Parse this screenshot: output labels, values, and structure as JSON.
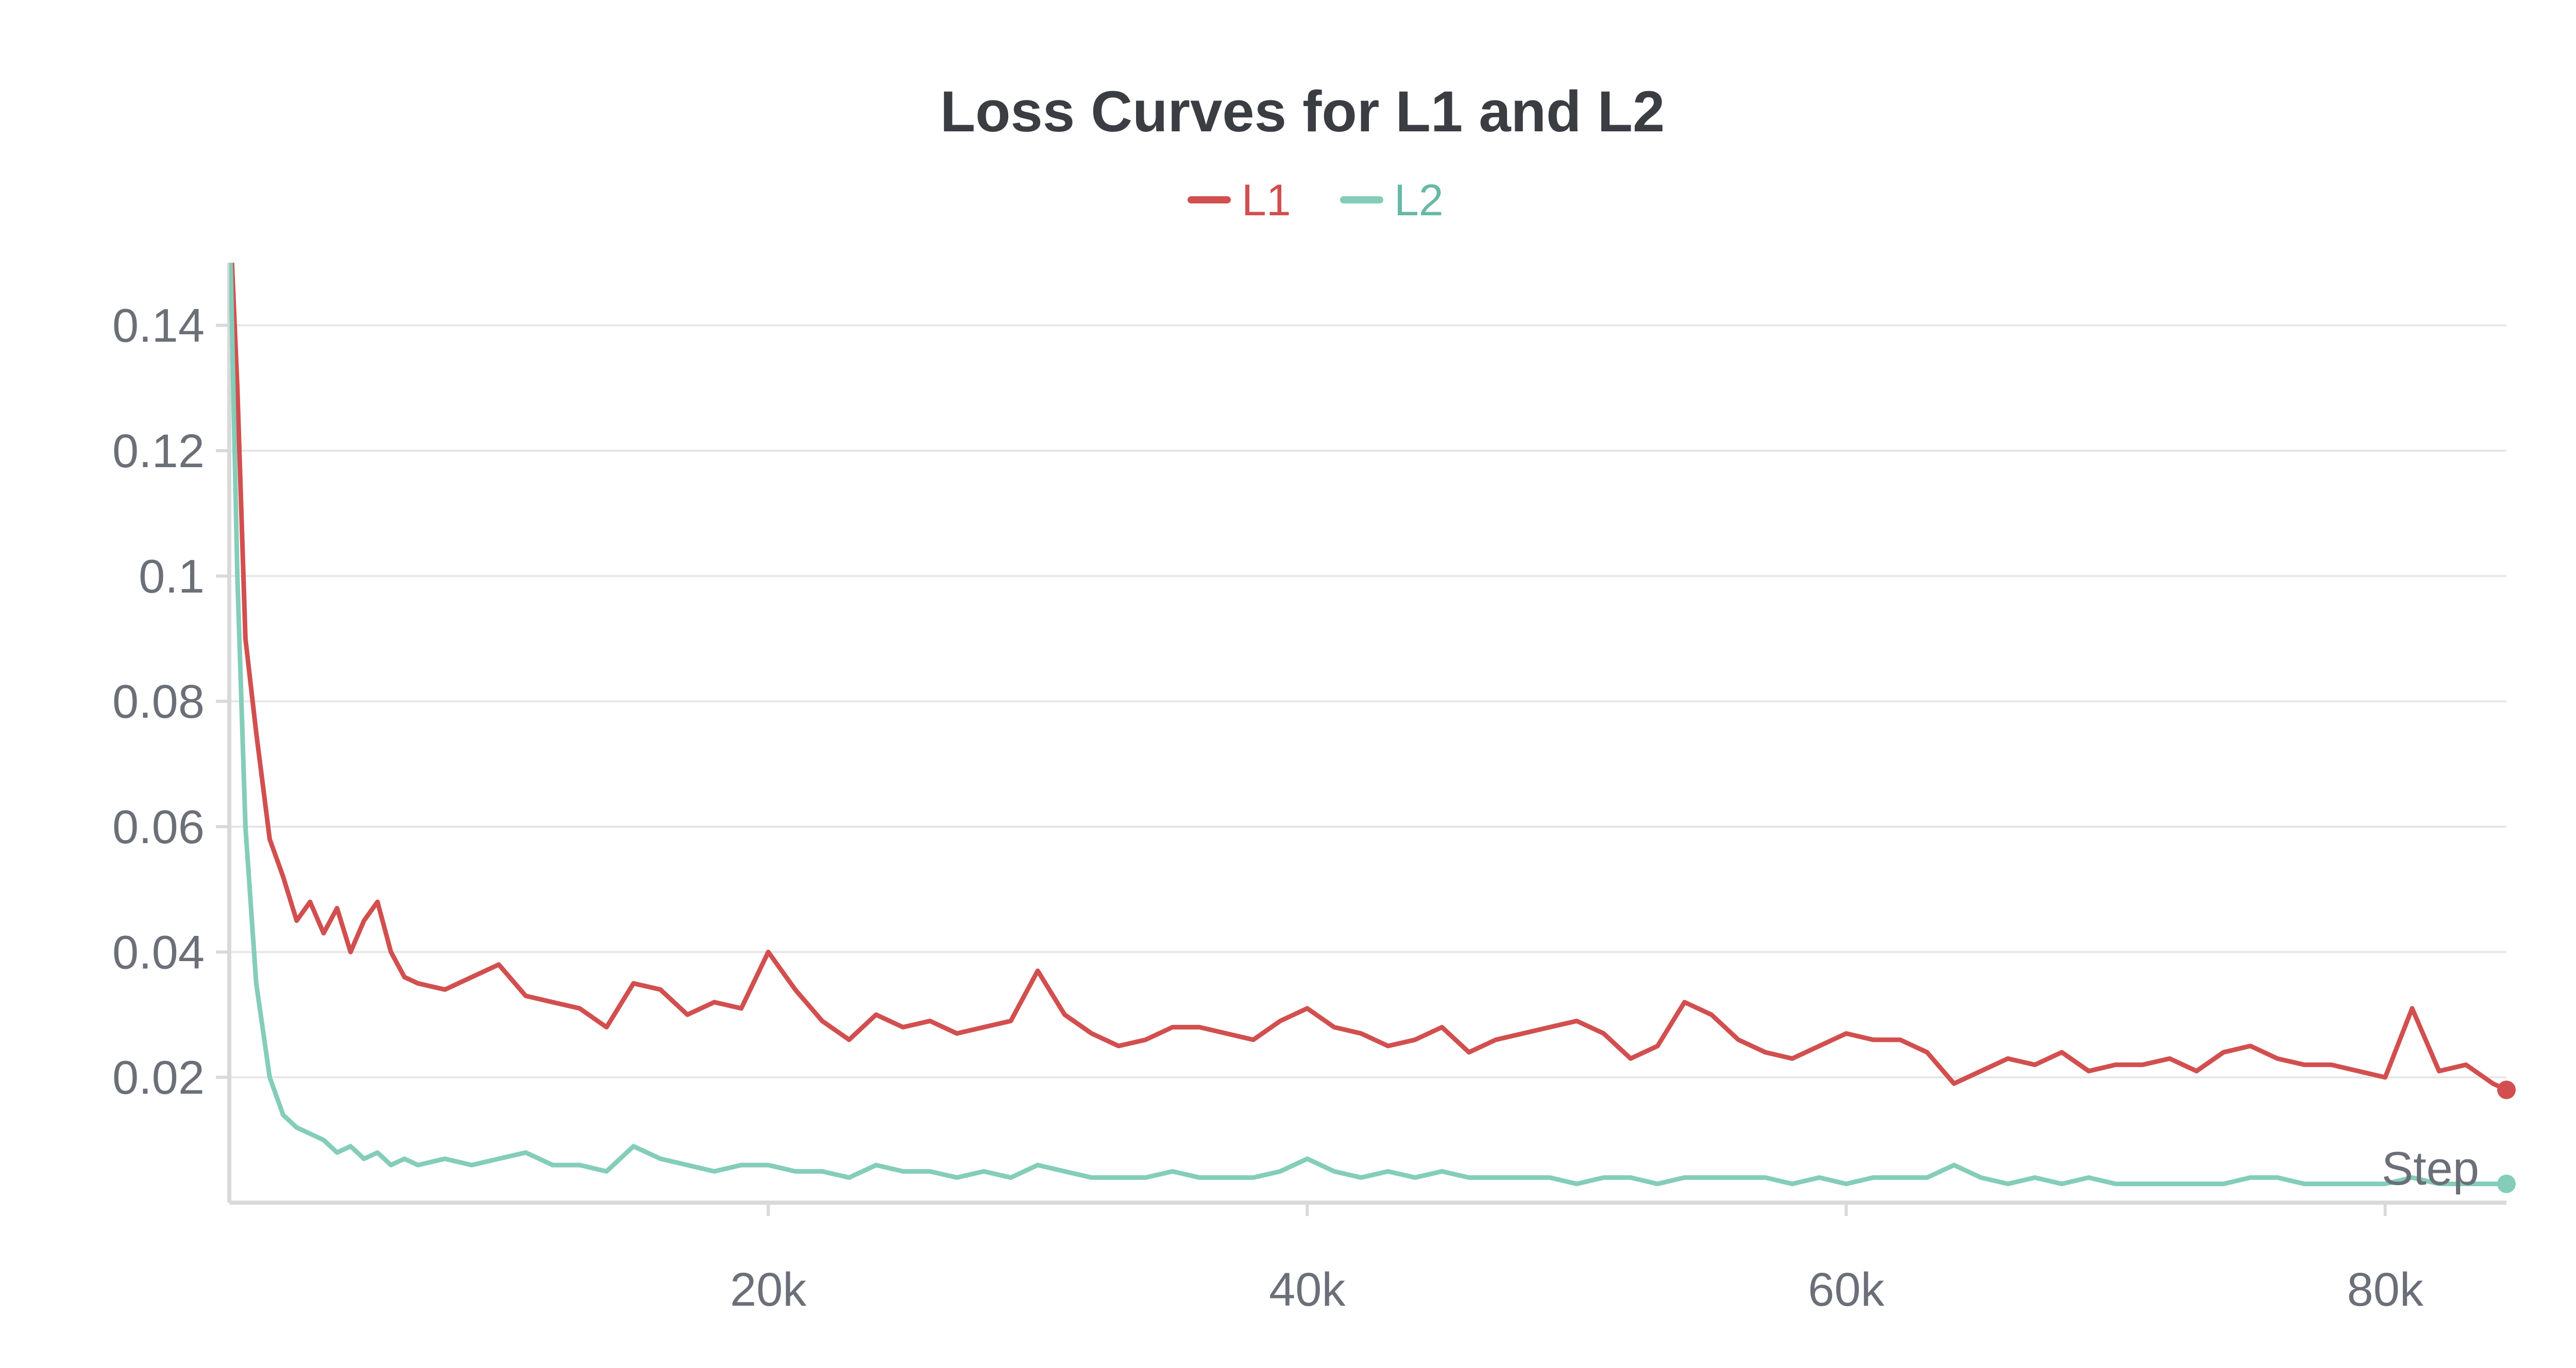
{
  "chart_data": {
    "type": "line",
    "title": "Loss Curves for L1 and L2",
    "xlabel": "Step",
    "ylabel": "",
    "xlim": [
      0,
      84500
    ],
    "ylim": [
      0.0,
      0.15
    ],
    "x_ticks": [
      20000,
      40000,
      60000,
      80000
    ],
    "x_tick_labels": [
      "20k",
      "40k",
      "60k",
      "80k"
    ],
    "y_ticks": [
      0.02,
      0.04,
      0.06,
      0.08,
      0.1,
      0.12,
      0.14
    ],
    "y_tick_labels": [
      "0.02",
      "0.04",
      "0.06",
      "0.08",
      "0.1",
      "0.12",
      "0.14"
    ],
    "grid": true,
    "legend": "top-center",
    "series": [
      {
        "name": "L1",
        "color": "#d24f4f",
        "x": [
          0,
          300,
          600,
          1000,
          1500,
          2000,
          2500,
          3000,
          3500,
          4000,
          4500,
          5000,
          5500,
          6000,
          6500,
          7000,
          8000,
          9000,
          10000,
          11000,
          12000,
          13000,
          14000,
          15000,
          16000,
          17000,
          18000,
          19000,
          20000,
          21000,
          22000,
          23000,
          24000,
          25000,
          26000,
          27000,
          28000,
          29000,
          30000,
          31000,
          32000,
          33000,
          34000,
          35000,
          36000,
          37000,
          38000,
          39000,
          40000,
          41000,
          42000,
          43000,
          44000,
          45000,
          46000,
          47000,
          48000,
          49000,
          50000,
          51000,
          52000,
          53000,
          54000,
          55000,
          56000,
          57000,
          58000,
          59000,
          60000,
          61000,
          62000,
          63000,
          64000,
          65000,
          66000,
          67000,
          68000,
          69000,
          70000,
          71000,
          72000,
          73000,
          74000,
          75000,
          76000,
          77000,
          78000,
          79000,
          80000,
          81000,
          82000,
          83000,
          84000,
          84500
        ],
        "y": [
          0.16,
          0.13,
          0.09,
          0.075,
          0.058,
          0.052,
          0.045,
          0.048,
          0.043,
          0.047,
          0.04,
          0.045,
          0.048,
          0.04,
          0.036,
          0.035,
          0.034,
          0.036,
          0.038,
          0.033,
          0.032,
          0.031,
          0.028,
          0.035,
          0.034,
          0.03,
          0.032,
          0.031,
          0.04,
          0.034,
          0.029,
          0.026,
          0.03,
          0.028,
          0.029,
          0.027,
          0.028,
          0.029,
          0.037,
          0.03,
          0.027,
          0.025,
          0.026,
          0.028,
          0.028,
          0.027,
          0.026,
          0.029,
          0.031,
          0.028,
          0.027,
          0.025,
          0.026,
          0.028,
          0.024,
          0.026,
          0.027,
          0.028,
          0.029,
          0.027,
          0.023,
          0.025,
          0.032,
          0.03,
          0.026,
          0.024,
          0.023,
          0.025,
          0.027,
          0.026,
          0.026,
          0.024,
          0.019,
          0.021,
          0.023,
          0.022,
          0.024,
          0.021,
          0.022,
          0.022,
          0.023,
          0.021,
          0.024,
          0.025,
          0.023,
          0.022,
          0.022,
          0.021,
          0.02,
          0.031,
          0.021,
          0.022,
          0.019,
          0.018
        ],
        "end_marker": true
      },
      {
        "name": "L2",
        "color": "#84cdb9",
        "x": [
          0,
          300,
          600,
          1000,
          1500,
          2000,
          2500,
          3000,
          3500,
          4000,
          4500,
          5000,
          5500,
          6000,
          6500,
          7000,
          8000,
          9000,
          10000,
          11000,
          12000,
          13000,
          14000,
          15000,
          16000,
          17000,
          18000,
          19000,
          20000,
          21000,
          22000,
          23000,
          24000,
          25000,
          26000,
          27000,
          28000,
          29000,
          30000,
          31000,
          32000,
          33000,
          34000,
          35000,
          36000,
          37000,
          38000,
          39000,
          40000,
          41000,
          42000,
          43000,
          44000,
          45000,
          46000,
          47000,
          48000,
          49000,
          50000,
          51000,
          52000,
          53000,
          54000,
          55000,
          56000,
          57000,
          58000,
          59000,
          60000,
          61000,
          62000,
          63000,
          64000,
          65000,
          66000,
          67000,
          68000,
          69000,
          70000,
          71000,
          72000,
          73000,
          74000,
          75000,
          76000,
          77000,
          78000,
          79000,
          80000,
          81000,
          82000,
          83000,
          84000,
          84500
        ],
        "y": [
          0.16,
          0.1,
          0.06,
          0.035,
          0.02,
          0.014,
          0.012,
          0.011,
          0.01,
          0.008,
          0.009,
          0.007,
          0.008,
          0.006,
          0.007,
          0.006,
          0.007,
          0.006,
          0.007,
          0.008,
          0.006,
          0.006,
          0.005,
          0.009,
          0.007,
          0.006,
          0.005,
          0.006,
          0.006,
          0.005,
          0.005,
          0.004,
          0.006,
          0.005,
          0.005,
          0.004,
          0.005,
          0.004,
          0.006,
          0.005,
          0.004,
          0.004,
          0.004,
          0.005,
          0.004,
          0.004,
          0.004,
          0.005,
          0.007,
          0.005,
          0.004,
          0.005,
          0.004,
          0.005,
          0.004,
          0.004,
          0.004,
          0.004,
          0.003,
          0.004,
          0.004,
          0.003,
          0.004,
          0.004,
          0.004,
          0.004,
          0.003,
          0.004,
          0.003,
          0.004,
          0.004,
          0.004,
          0.006,
          0.004,
          0.003,
          0.004,
          0.003,
          0.004,
          0.003,
          0.003,
          0.003,
          0.003,
          0.003,
          0.004,
          0.004,
          0.003,
          0.003,
          0.003,
          0.003,
          0.004,
          0.003,
          0.003,
          0.003,
          0.003
        ],
        "end_marker": true
      }
    ]
  },
  "colors": {
    "title": "#3a3d42",
    "tick": "#6b6f78",
    "grid": "#e6e6e6",
    "axis": "#d9d9d9"
  }
}
